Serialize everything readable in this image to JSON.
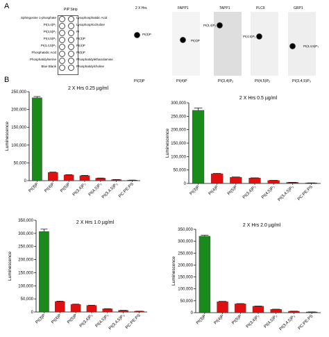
{
  "panel_letters": {
    "a": "A",
    "b": "B"
  },
  "pip_strip": {
    "title": "PIP Strip",
    "left_labels": [
      "Sphingosine 1-phosphate",
      "PI(3,4)P₂",
      "PI(3,5)P₂",
      "PI(4,5)P₂",
      "PI(3,4,5)P₃",
      "Phosphatidic Acid",
      "Phosphatidylserine",
      "Blue Blank"
    ],
    "right_labels": [
      "Lysophosphatidic Acid",
      "Lysophosphocholine",
      "PI",
      "PI(3)P",
      "PI(4)P",
      "PI(5)P",
      "Phosphatidylethanolamine",
      "Phosphatidylcholine"
    ]
  },
  "blots": [
    {
      "title": "2 X Hrs",
      "spot_label": "PI(3)P",
      "bottom_label": "PI(3)P",
      "bg": "#ffffff"
    },
    {
      "title": "FAPP1",
      "spot_label": "PI(4)P",
      "bottom_label": "PI(4)P",
      "bg": "#f4f4f4"
    },
    {
      "title": "TAPP1",
      "spot_label": "PI(3,4)P₂",
      "bottom_label": "PI(3,4)P₂",
      "bg": "#dedede"
    },
    {
      "title": "PLCδ",
      "spot_label": "PI(4,5)P₂",
      "bottom_label": "PI(4,5)P₂",
      "bg": "#f0f0f0"
    },
    {
      "title": "GRP1",
      "spot_label": "PI(3,4,5)P₃",
      "bottom_label": "PI(3,4,5)P₃",
      "bg": "#eeeeee"
    }
  ],
  "colors": {
    "green": "#1a8a1a",
    "red": "#e01010",
    "axis": "#000000"
  },
  "chart_data": [
    {
      "type": "bar",
      "title": "2 X Hrs 0.25 µg/ml",
      "ylabel": "Luminescence",
      "ylim": [
        0,
        250000
      ],
      "yticks": [
        0,
        50000,
        100000,
        150000,
        200000,
        250000
      ],
      "ytick_labels": [
        "0",
        "50,000",
        "100,000",
        "150,000",
        "200,000",
        "250,000"
      ],
      "categories": [
        "PI(3)P",
        "PI(4)P",
        "PI(5)P",
        "PI(3,4)P₂",
        "PI(4,5)P₂",
        "PI(3,4,5)P₃",
        "PC:PE:PS"
      ],
      "values": [
        233000,
        23000,
        16000,
        14000,
        7000,
        3000,
        1500
      ],
      "errors": [
        3500,
        1200,
        900,
        800,
        500,
        300,
        200
      ]
    },
    {
      "type": "bar",
      "title": "2 X Hrs 0.5 µg/ml",
      "ylabel": "Luminescence",
      "ylim": [
        0,
        300000
      ],
      "yticks": [
        0,
        50000,
        100000,
        150000,
        200000,
        250000,
        300000
      ],
      "ytick_labels": [
        "0",
        "50,000",
        "100,000",
        "150,000",
        "200,000",
        "250,000",
        "300,000"
      ],
      "categories": [
        "PI(3)P",
        "PI(4)P",
        "PI(5)P",
        "PI(3,4)P₂",
        "PI(4,5)P₂",
        "PI(3,4,5)P₃",
        "PC:PE:PS"
      ],
      "values": [
        272000,
        36000,
        23000,
        20000,
        11000,
        4000,
        2000
      ],
      "errors": [
        9000,
        1500,
        1000,
        900,
        600,
        300,
        200
      ]
    },
    {
      "type": "bar",
      "title": "2 X Hrs 1.0 µg/ml",
      "ylabel": "Luminescence",
      "ylim": [
        0,
        350000
      ],
      "yticks": [
        0,
        50000,
        100000,
        150000,
        200000,
        250000,
        300000,
        350000
      ],
      "ytick_labels": [
        "0",
        "50,000",
        "100,000",
        "150,000",
        "200,000",
        "250,000",
        "300,000",
        "350,000"
      ],
      "categories": [
        "PI(3)P",
        "PI(4)P",
        "PI(5)P",
        "PI(3,4)P₂",
        "PI(4,5)P₂",
        "PI(3,4,5)P₃",
        "PC:PE:PS"
      ],
      "values": [
        307000,
        40000,
        29000,
        25000,
        12000,
        6000,
        3000
      ],
      "errors": [
        9000,
        1500,
        1000,
        900,
        700,
        400,
        200
      ]
    },
    {
      "type": "bar",
      "title": "2 X Hrs 2.0 µg/ml",
      "ylabel": "Luminescence",
      "ylim": [
        0,
        350000
      ],
      "yticks": [
        0,
        50000,
        100000,
        150000,
        200000,
        250000,
        300000,
        350000
      ],
      "ytick_labels": [
        "0",
        "50,000",
        "100,000",
        "150,000",
        "200,000",
        "250,000",
        "300,000",
        "350,000"
      ],
      "categories": [
        "PI(3)P",
        "PI(4)P",
        "PI(5)P",
        "PI(3,4)P₂",
        "PI(4,5)P₂",
        "PI(3,4,5)P₃",
        "PC:PE:PS"
      ],
      "values": [
        321000,
        46000,
        37000,
        27000,
        14000,
        6000,
        3000
      ],
      "errors": [
        4000,
        1500,
        1200,
        900,
        700,
        400,
        200
      ]
    }
  ]
}
